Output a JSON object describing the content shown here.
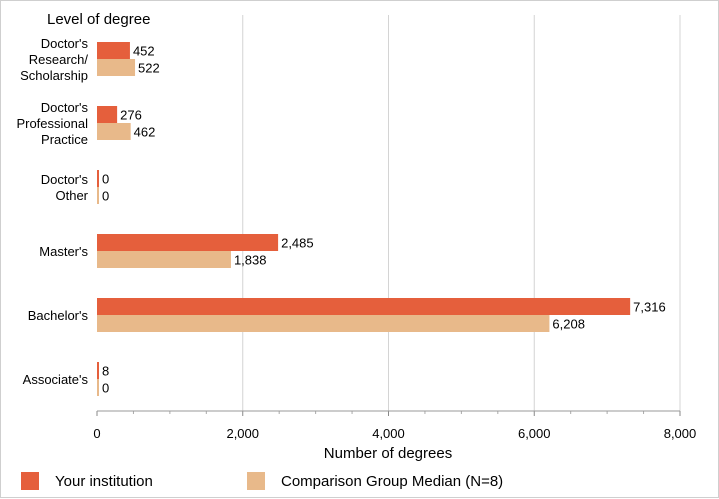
{
  "chart_data": {
    "type": "bar",
    "orientation": "horizontal",
    "title": "Level of degree",
    "xlabel": "Number of degrees",
    "ylabel": "Level of degree",
    "xlim": [
      0,
      8000
    ],
    "x_ticks": [
      "0",
      "2,000",
      "4,000",
      "6,000",
      "8,000"
    ],
    "x_tick_values": [
      0,
      2000,
      4000,
      6000,
      8000
    ],
    "grid": true,
    "legend_position": "bottom",
    "categories": [
      [
        "Doctor's",
        "Research/",
        "Scholarship"
      ],
      [
        "Doctor's",
        "Professional",
        "Practice"
      ],
      [
        "Doctor's",
        "Other"
      ],
      [
        "Master's"
      ],
      [
        "Bachelor's"
      ],
      [
        "Associate's"
      ]
    ],
    "series": [
      {
        "name": "Your institution",
        "color": "#e55f3c",
        "values": [
          452,
          276,
          0,
          2485,
          7316,
          8
        ],
        "labels": [
          "452",
          "276",
          "0",
          "2,485",
          "7,316",
          "8"
        ]
      },
      {
        "name": "Comparison Group Median (N=8)",
        "color": "#e8b98a",
        "values": [
          522,
          462,
          0,
          1838,
          6208,
          0
        ],
        "labels": [
          "522",
          "462",
          "0",
          "1,838",
          "6,208",
          "0"
        ]
      }
    ]
  }
}
